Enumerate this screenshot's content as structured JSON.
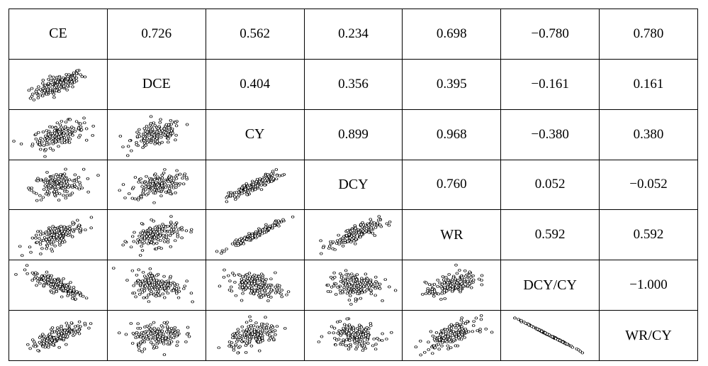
{
  "chart_data": {
    "type": "scatter",
    "variables": [
      "CE",
      "DCE",
      "CY",
      "DCY",
      "WR",
      "DCY/CY",
      "WR/CY"
    ],
    "correlations": [
      [
        null,
        "0.726",
        "0.562",
        "0.234",
        "0.698",
        "−0.780",
        "0.780"
      ],
      [
        null,
        null,
        "0.404",
        "0.356",
        "0.395",
        "−0.161",
        "0.161"
      ],
      [
        null,
        null,
        null,
        "0.899",
        "0.968",
        "−0.380",
        "0.380"
      ],
      [
        null,
        null,
        null,
        null,
        "0.760",
        "0.052",
        "−0.052"
      ],
      [
        null,
        null,
        null,
        null,
        null,
        "0.592",
        "0.592"
      ],
      [
        null,
        null,
        null,
        null,
        null,
        null,
        "−1.000"
      ],
      [
        null,
        null,
        null,
        null,
        null,
        null,
        null
      ]
    ],
    "marker": "open-circle",
    "marker_color": "#000000"
  }
}
